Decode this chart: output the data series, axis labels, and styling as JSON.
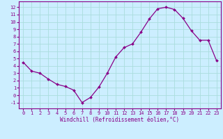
{
  "x": [
    0,
    1,
    2,
    3,
    4,
    5,
    6,
    7,
    8,
    9,
    10,
    11,
    12,
    13,
    14,
    15,
    16,
    17,
    18,
    19,
    20,
    21,
    22,
    23
  ],
  "y": [
    4.5,
    3.3,
    3.0,
    2.2,
    1.5,
    1.2,
    0.7,
    -1.0,
    -0.3,
    1.1,
    3.0,
    5.2,
    6.5,
    7.0,
    8.6,
    10.4,
    11.8,
    12.0,
    11.7,
    10.5,
    8.8,
    7.5,
    7.5,
    4.7
  ],
  "line_color": "#880088",
  "marker": "D",
  "marker_size": 2.0,
  "bg_color": "#cceeff",
  "grid_color": "#aadddd",
  "xlabel": "Windchill (Refroidissement éolien,°C)",
  "ylabel_ticks": [
    -1,
    0,
    1,
    2,
    3,
    4,
    5,
    6,
    7,
    8,
    9,
    10,
    11,
    12
  ],
  "xlim": [
    -0.5,
    23.5
  ],
  "ylim": [
    -1.8,
    12.8
  ],
  "xtick_labels": [
    "0",
    "1",
    "2",
    "3",
    "4",
    "5",
    "6",
    "7",
    "8",
    "9",
    "10",
    "11",
    "12",
    "13",
    "14",
    "15",
    "16",
    "17",
    "18",
    "19",
    "20",
    "21",
    "22",
    "23"
  ],
  "spine_color": "#880088",
  "tick_color": "#880088",
  "label_color": "#880088",
  "tick_fontsize": 5.0,
  "xlabel_fontsize": 5.5
}
